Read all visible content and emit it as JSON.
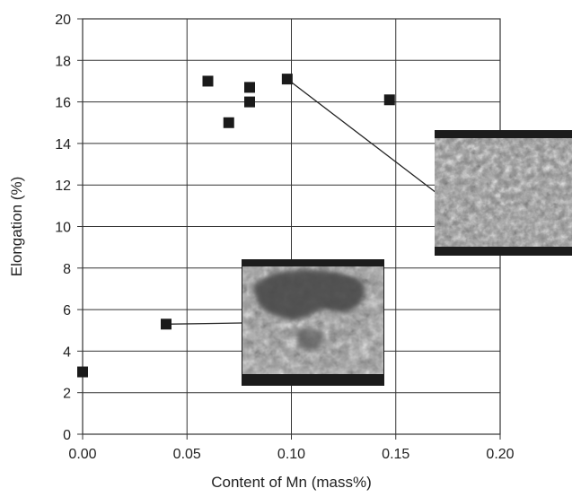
{
  "chart_data": {
    "type": "scatter",
    "title": "",
    "xlabel": "Content of Mn (mass%)",
    "ylabel": "Elongation (%)",
    "xlim": [
      0,
      0.2
    ],
    "ylim": [
      0,
      20
    ],
    "xticks": [
      "0.00",
      "0.05",
      "0.10",
      "0.15",
      "0.20"
    ],
    "yticks": [
      "0",
      "2",
      "4",
      "6",
      "8",
      "10",
      "12",
      "14",
      "16",
      "18",
      "20"
    ],
    "grid": true,
    "legend": "none",
    "marker": "filled-square",
    "colors": {
      "marker": "#1a1a1a",
      "grid": "#333333",
      "micrograph_frame": "#1c1c1c"
    },
    "series": [
      {
        "points": [
          {
            "x": 0.0,
            "y": 3.0
          },
          {
            "x": 0.04,
            "y": 5.3
          },
          {
            "x": 0.06,
            "y": 17.0
          },
          {
            "x": 0.07,
            "y": 15.0
          },
          {
            "x": 0.08,
            "y": 16.0
          },
          {
            "x": 0.08,
            "y": 16.7
          },
          {
            "x": 0.098,
            "y": 17.1
          },
          {
            "x": 0.147,
            "y": 16.1
          }
        ]
      }
    ],
    "annotations": [
      {
        "type": "micrograph-inset",
        "points_to": {
          "x": 0.04,
          "y": 5.3
        },
        "depicts": "coarse-grain microstructure"
      },
      {
        "type": "micrograph-inset",
        "points_to": {
          "x": 0.098,
          "y": 17.1
        },
        "depicts": "fine-grain microstructure"
      }
    ]
  }
}
